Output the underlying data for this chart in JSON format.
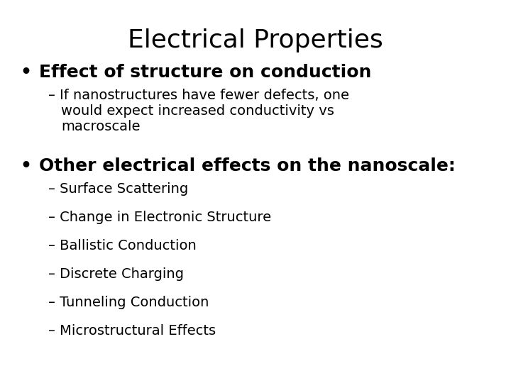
{
  "title": "Electrical Properties",
  "title_fontsize": 26,
  "title_fontweight": "normal",
  "background_color": "#ffffff",
  "text_color": "#000000",
  "bullet1": "Effect of structure on conduction",
  "bullet1_fontsize": 18,
  "bullet1_fontweight": "bold",
  "sub1_line1": "– If nanostructures have fewer defects, one",
  "sub1_line2": "   would expect increased conductivity vs",
  "sub1_line3": "   macroscale",
  "sub1_fontsize": 14,
  "bullet2": "Other electrical effects on the nanoscale:",
  "bullet2_fontsize": 18,
  "bullet2_fontweight": "bold",
  "sub2_items": [
    "– Surface Scattering",
    "– Change in Electronic Structure",
    "– Ballistic Conduction",
    "– Discrete Charging",
    "– Tunneling Conduction",
    "– Microstructural Effects"
  ],
  "sub2_fontsize": 14,
  "font_family": "DejaVu Sans"
}
